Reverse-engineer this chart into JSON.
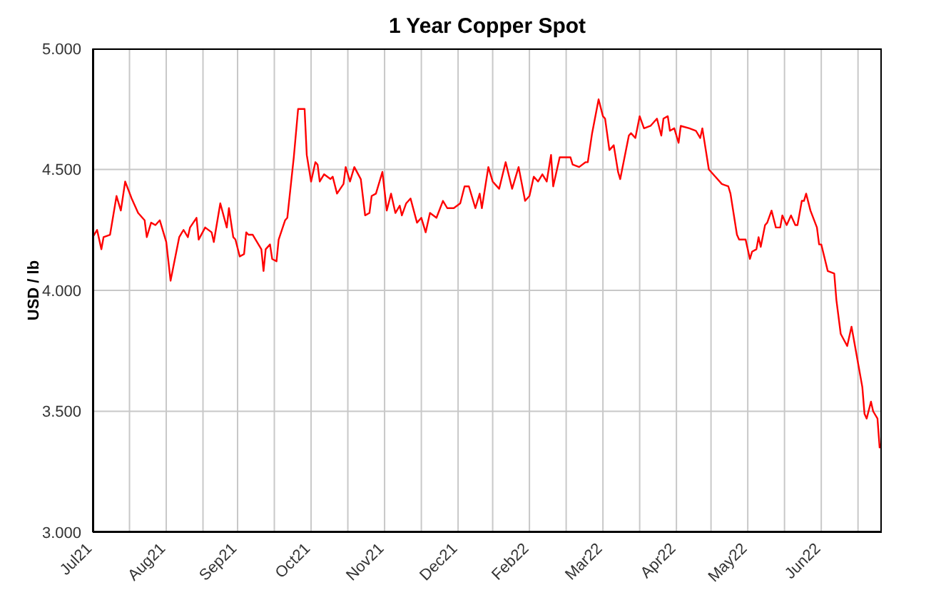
{
  "chart_data": {
    "type": "line",
    "title": "1 Year Copper Spot",
    "ylabel": "USD / lb",
    "x": [
      "2021-07-15",
      "2021-07-17",
      "2021-07-19",
      "2021-07-20",
      "2021-07-23",
      "2021-07-26",
      "2021-07-28",
      "2021-07-30",
      "2021-08-02",
      "2021-08-05",
      "2021-08-08",
      "2021-08-09",
      "2021-08-11",
      "2021-08-13",
      "2021-08-15",
      "2021-08-18",
      "2021-08-20",
      "2021-08-24",
      "2021-08-26",
      "2021-08-28",
      "2021-08-29",
      "2021-09-01",
      "2021-09-02",
      "2021-09-05",
      "2021-09-08",
      "2021-09-09",
      "2021-09-12",
      "2021-09-15",
      "2021-09-16",
      "2021-09-18",
      "2021-09-19",
      "2021-09-21",
      "2021-09-23",
      "2021-09-24",
      "2021-09-25",
      "2021-09-27",
      "2021-10-01",
      "2021-10-02",
      "2021-10-03",
      "2021-10-05",
      "2021-10-06",
      "2021-10-08",
      "2021-10-09",
      "2021-10-12",
      "2021-10-13",
      "2021-10-16",
      "2021-10-18",
      "2021-10-21",
      "2021-10-22",
      "2021-10-24",
      "2021-10-26",
      "2021-10-27",
      "2021-10-28",
      "2021-10-30",
      "2021-11-02",
      "2021-11-03",
      "2021-11-05",
      "2021-11-08",
      "2021-11-09",
      "2021-11-11",
      "2021-11-13",
      "2021-11-16",
      "2021-11-18",
      "2021-11-20",
      "2021-11-21",
      "2021-11-23",
      "2021-11-26",
      "2021-11-28",
      "2021-11-30",
      "2021-12-02",
      "2021-12-04",
      "2021-12-05",
      "2021-12-07",
      "2021-12-09",
      "2021-12-12",
      "2021-12-14",
      "2021-12-16",
      "2021-12-18",
      "2021-12-21",
      "2021-12-24",
      "2021-12-26",
      "2021-12-29",
      "2022-01-01",
      "2022-01-03",
      "2022-01-05",
      "2022-01-08",
      "2022-01-10",
      "2022-01-11",
      "2022-01-14",
      "2022-01-16",
      "2022-01-17",
      "2022-01-19",
      "2022-01-22",
      "2022-01-25",
      "2022-01-28",
      "2022-01-31",
      "2022-02-02",
      "2022-02-04",
      "2022-02-06",
      "2022-02-08",
      "2022-02-10",
      "2022-02-12",
      "2022-02-13",
      "2022-02-16",
      "2022-02-19",
      "2022-02-21",
      "2022-02-22",
      "2022-02-25",
      "2022-02-28",
      "2022-03-01",
      "2022-03-03",
      "2022-03-06",
      "2022-03-08",
      "2022-03-09",
      "2022-03-11",
      "2022-03-13",
      "2022-03-15",
      "2022-03-16",
      "2022-03-20",
      "2022-03-21",
      "2022-03-23",
      "2022-03-25",
      "2022-03-27",
      "2022-03-30",
      "2022-04-02",
      "2022-04-04",
      "2022-04-05",
      "2022-04-07",
      "2022-04-08",
      "2022-04-10",
      "2022-04-12",
      "2022-04-13",
      "2022-04-17",
      "2022-04-20",
      "2022-04-22",
      "2022-04-23",
      "2022-04-26",
      "2022-04-28",
      "2022-05-02",
      "2022-05-05",
      "2022-05-06",
      "2022-05-09",
      "2022-05-10",
      "2022-05-13",
      "2022-05-15",
      "2022-05-16",
      "2022-05-18",
      "2022-05-19",
      "2022-05-20",
      "2022-05-22",
      "2022-05-23",
      "2022-05-25",
      "2022-05-27",
      "2022-05-29",
      "2022-05-30",
      "2022-06-01",
      "2022-06-03",
      "2022-06-05",
      "2022-06-06",
      "2022-06-08",
      "2022-06-09",
      "2022-06-10",
      "2022-06-12",
      "2022-06-15",
      "2022-06-16",
      "2022-06-17",
      "2022-06-20",
      "2022-06-23",
      "2022-06-24",
      "2022-06-26",
      "2022-06-29",
      "2022-07-01",
      "2022-07-02",
      "2022-07-05",
      "2022-07-06",
      "2022-07-07",
      "2022-07-08",
      "2022-07-10",
      "2022-07-11",
      "2022-07-13",
      "2022-07-14",
      "2022-07-15"
    ],
    "series": [
      {
        "color": "#ff0000",
        "values": [
          4.22,
          4.25,
          4.17,
          4.22,
          4.23,
          4.39,
          4.33,
          4.45,
          4.38,
          4.32,
          4.29,
          4.22,
          4.28,
          4.27,
          4.29,
          4.2,
          4.04,
          4.22,
          4.25,
          4.22,
          4.26,
          4.3,
          4.21,
          4.26,
          4.24,
          4.2,
          4.36,
          4.26,
          4.34,
          4.22,
          4.21,
          4.14,
          4.15,
          4.24,
          4.23,
          4.23,
          4.17,
          4.08,
          4.17,
          4.19,
          4.13,
          4.12,
          4.21,
          4.29,
          4.3,
          4.55,
          4.75,
          4.75,
          4.56,
          4.45,
          4.53,
          4.52,
          4.45,
          4.48,
          4.46,
          4.47,
          4.4,
          4.44,
          4.51,
          4.45,
          4.51,
          4.46,
          4.31,
          4.32,
          4.39,
          4.4,
          4.49,
          4.33,
          4.4,
          4.32,
          4.35,
          4.31,
          4.36,
          4.38,
          4.28,
          4.3,
          4.24,
          4.32,
          4.3,
          4.37,
          4.34,
          4.34,
          4.36,
          4.43,
          4.43,
          4.34,
          4.4,
          4.34,
          4.51,
          4.45,
          4.44,
          4.42,
          4.53,
          4.42,
          4.51,
          4.37,
          4.39,
          4.47,
          4.45,
          4.48,
          4.45,
          4.56,
          4.43,
          4.55,
          4.55,
          4.55,
          4.52,
          4.51,
          4.53,
          4.53,
          4.65,
          4.79,
          4.72,
          4.71,
          4.58,
          4.6,
          4.49,
          4.46,
          4.64,
          4.65,
          4.63,
          4.72,
          4.67,
          4.68,
          4.71,
          4.64,
          4.71,
          4.72,
          4.66,
          4.67,
          4.61,
          4.68,
          4.67,
          4.66,
          4.63,
          4.67,
          4.5,
          4.48,
          4.44,
          4.43,
          4.4,
          4.23,
          4.21,
          4.21,
          4.13,
          4.16,
          4.17,
          4.22,
          4.18,
          4.27,
          4.28,
          4.33,
          4.26,
          4.26,
          4.31,
          4.27,
          4.31,
          4.27,
          4.27,
          4.37,
          4.37,
          4.4,
          4.33,
          4.26,
          4.19,
          4.19,
          4.08,
          4.07,
          3.96,
          3.82,
          3.77,
          3.85,
          3.8,
          3.65,
          3.6,
          3.49,
          3.47,
          3.54,
          3.5,
          3.47,
          3.35,
          3.37
        ]
      }
    ],
    "xlim": [
      "2021-07-15",
      "2022-07-15"
    ],
    "xticks": [
      {
        "value": "2021-07-15",
        "label": "Jul21"
      },
      {
        "value": "2021-08-01",
        "label": null
      },
      {
        "value": "2021-08-18",
        "label": "Aug21"
      },
      {
        "value": "2021-09-04",
        "label": null
      },
      {
        "value": "2021-09-20",
        "label": "Sep21"
      },
      {
        "value": "2021-10-07",
        "label": null
      },
      {
        "value": "2021-10-24",
        "label": "Oct21"
      },
      {
        "value": "2021-11-10",
        "label": null
      },
      {
        "value": "2021-11-27",
        "label": "Nov21"
      },
      {
        "value": "2021-12-14",
        "label": null
      },
      {
        "value": "2021-12-31",
        "label": "Dec21"
      },
      {
        "value": "2022-01-16",
        "label": null
      },
      {
        "value": "2022-02-02",
        "label": "Feb22"
      },
      {
        "value": "2022-02-19",
        "label": null
      },
      {
        "value": "2022-03-08",
        "label": "Mar22"
      },
      {
        "value": "2022-03-25",
        "label": null
      },
      {
        "value": "2022-04-11",
        "label": "Apr22"
      },
      {
        "value": "2022-04-27",
        "label": null
      },
      {
        "value": "2022-05-14",
        "label": "May22"
      },
      {
        "value": "2022-05-31",
        "label": null
      },
      {
        "value": "2022-06-17",
        "label": "Jun22"
      },
      {
        "value": "2022-07-04",
        "label": null
      }
    ],
    "ylim": [
      3,
      5
    ],
    "yticks": [
      {
        "value": 3,
        "label": "3.000"
      },
      {
        "value": 3.5,
        "label": "3.500"
      },
      {
        "value": 4,
        "label": "4.000"
      },
      {
        "value": 4.5,
        "label": "4.500"
      },
      {
        "value": 5,
        "label": "5.000"
      }
    ],
    "grid": true,
    "marker": "none",
    "line_style": "solid"
  }
}
